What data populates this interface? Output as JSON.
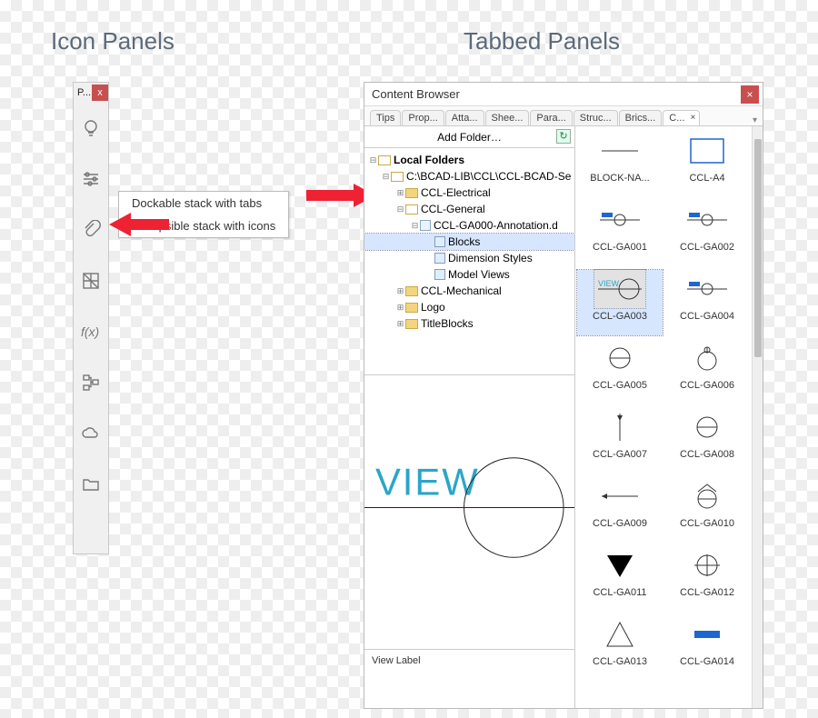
{
  "headings": {
    "left": "Icon Panels",
    "right": "Tabbed Panels"
  },
  "iconPanel": {
    "title": "P...",
    "close": "x",
    "icons": [
      "lightbulb",
      "sliders",
      "paperclip",
      "grid-diag",
      "fx",
      "tree",
      "cloud",
      "folder"
    ]
  },
  "callout": {
    "line1": "Dockable stack with tabs",
    "line2": "Collapsible stack with icons"
  },
  "cb": {
    "title": "Content Browser",
    "tabs": [
      "Tips",
      "Prop...",
      "Atta...",
      "Shee...",
      "Para...",
      "Struc...",
      "Brics...",
      "C..."
    ],
    "activeTab": 7,
    "addFolder": "Add Folder…",
    "tree": [
      {
        "ind": 0,
        "tw": "-",
        "ico": "fold-open",
        "label": "Local Folders",
        "bold": true
      },
      {
        "ind": 1,
        "tw": "-",
        "ico": "fold-open",
        "label": "C:\\BCAD-LIB\\CCL\\CCL-BCAD-Se"
      },
      {
        "ind": 2,
        "tw": "+",
        "ico": "fold",
        "label": "CCL-Electrical"
      },
      {
        "ind": 2,
        "tw": "-",
        "ico": "fold-open",
        "label": "CCL-General"
      },
      {
        "ind": 3,
        "tw": "-",
        "ico": "file",
        "label": "CCL-GA000-Annotation.d"
      },
      {
        "ind": 4,
        "tw": "",
        "ico": "leaf",
        "label": "Blocks",
        "sel": true
      },
      {
        "ind": 4,
        "tw": "",
        "ico": "leaf",
        "label": "Dimension Styles"
      },
      {
        "ind": 4,
        "tw": "",
        "ico": "leaf",
        "label": "Model Views"
      },
      {
        "ind": 2,
        "tw": "+",
        "ico": "fold",
        "label": "CCL-Mechanical"
      },
      {
        "ind": 2,
        "tw": "+",
        "ico": "fold",
        "label": "Logo"
      },
      {
        "ind": 2,
        "tw": "+",
        "ico": "fold",
        "label": "TitleBlocks"
      }
    ],
    "previewLabel": "View Label",
    "previewText": "VIEW",
    "thumbs": [
      {
        "label": "BLOCK-NA...",
        "t": "dash"
      },
      {
        "label": "CCL-A4",
        "t": "rect-blue"
      },
      {
        "label": "CCL-GA001",
        "t": "circ-line-blue"
      },
      {
        "label": "CCL-GA002",
        "t": "circ-line-blue"
      },
      {
        "label": "CCL-GA003",
        "t": "view-circ",
        "sel": true
      },
      {
        "label": "CCL-GA004",
        "t": "circ-line-blue"
      },
      {
        "label": "CCL-GA005",
        "t": "circ-mid"
      },
      {
        "label": "CCL-GA006",
        "t": "circ-top"
      },
      {
        "label": "CCL-GA007",
        "t": "vline-dot"
      },
      {
        "label": "CCL-GA008",
        "t": "circ-open"
      },
      {
        "label": "CCL-GA009",
        "t": "hline"
      },
      {
        "label": "CCL-GA010",
        "t": "circ-hat"
      },
      {
        "label": "CCL-GA011",
        "t": "tri-down-fill"
      },
      {
        "label": "CCL-GA012",
        "t": "circ-cross"
      },
      {
        "label": "CCL-GA013",
        "t": "tri-up"
      },
      {
        "label": "CCL-GA014",
        "t": "bar-blue"
      }
    ]
  },
  "colors": {
    "accentRed": "#c84f4f",
    "viewText": "#2aa6c9",
    "blue": "#1e66d0"
  }
}
